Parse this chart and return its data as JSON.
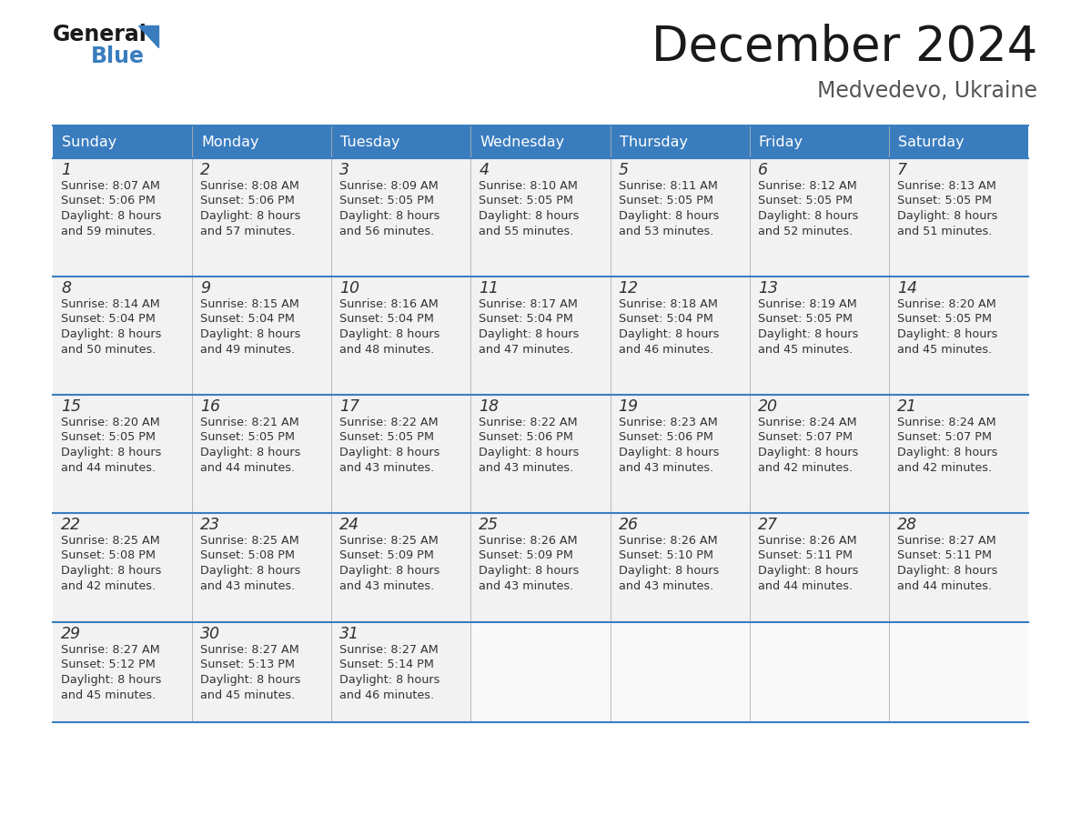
{
  "title": "December 2024",
  "subtitle": "Medvedevo, Ukraine",
  "header_color": "#3a7dbf",
  "header_text_color": "#ffffff",
  "cell_bg_color": "#f2f2f2",
  "border_color": "#3a7dbf",
  "separator_color": "#3a7dbf",
  "days_of_week": [
    "Sunday",
    "Monday",
    "Tuesday",
    "Wednesday",
    "Thursday",
    "Friday",
    "Saturday"
  ],
  "calendar_data": [
    [
      {
        "day": "1",
        "sunrise": "8:07 AM",
        "sunset": "5:06 PM",
        "daylight_line1": "Daylight: 8 hours",
        "daylight_line2": "and 59 minutes."
      },
      {
        "day": "2",
        "sunrise": "8:08 AM",
        "sunset": "5:06 PM",
        "daylight_line1": "Daylight: 8 hours",
        "daylight_line2": "and 57 minutes."
      },
      {
        "day": "3",
        "sunrise": "8:09 AM",
        "sunset": "5:05 PM",
        "daylight_line1": "Daylight: 8 hours",
        "daylight_line2": "and 56 minutes."
      },
      {
        "day": "4",
        "sunrise": "8:10 AM",
        "sunset": "5:05 PM",
        "daylight_line1": "Daylight: 8 hours",
        "daylight_line2": "and 55 minutes."
      },
      {
        "day": "5",
        "sunrise": "8:11 AM",
        "sunset": "5:05 PM",
        "daylight_line1": "Daylight: 8 hours",
        "daylight_line2": "and 53 minutes."
      },
      {
        "day": "6",
        "sunrise": "8:12 AM",
        "sunset": "5:05 PM",
        "daylight_line1": "Daylight: 8 hours",
        "daylight_line2": "and 52 minutes."
      },
      {
        "day": "7",
        "sunrise": "8:13 AM",
        "sunset": "5:05 PM",
        "daylight_line1": "Daylight: 8 hours",
        "daylight_line2": "and 51 minutes."
      }
    ],
    [
      {
        "day": "8",
        "sunrise": "8:14 AM",
        "sunset": "5:04 PM",
        "daylight_line1": "Daylight: 8 hours",
        "daylight_line2": "and 50 minutes."
      },
      {
        "day": "9",
        "sunrise": "8:15 AM",
        "sunset": "5:04 PM",
        "daylight_line1": "Daylight: 8 hours",
        "daylight_line2": "and 49 minutes."
      },
      {
        "day": "10",
        "sunrise": "8:16 AM",
        "sunset": "5:04 PM",
        "daylight_line1": "Daylight: 8 hours",
        "daylight_line2": "and 48 minutes."
      },
      {
        "day": "11",
        "sunrise": "8:17 AM",
        "sunset": "5:04 PM",
        "daylight_line1": "Daylight: 8 hours",
        "daylight_line2": "and 47 minutes."
      },
      {
        "day": "12",
        "sunrise": "8:18 AM",
        "sunset": "5:04 PM",
        "daylight_line1": "Daylight: 8 hours",
        "daylight_line2": "and 46 minutes."
      },
      {
        "day": "13",
        "sunrise": "8:19 AM",
        "sunset": "5:05 PM",
        "daylight_line1": "Daylight: 8 hours",
        "daylight_line2": "and 45 minutes."
      },
      {
        "day": "14",
        "sunrise": "8:20 AM",
        "sunset": "5:05 PM",
        "daylight_line1": "Daylight: 8 hours",
        "daylight_line2": "and 45 minutes."
      }
    ],
    [
      {
        "day": "15",
        "sunrise": "8:20 AM",
        "sunset": "5:05 PM",
        "daylight_line1": "Daylight: 8 hours",
        "daylight_line2": "and 44 minutes."
      },
      {
        "day": "16",
        "sunrise": "8:21 AM",
        "sunset": "5:05 PM",
        "daylight_line1": "Daylight: 8 hours",
        "daylight_line2": "and 44 minutes."
      },
      {
        "day": "17",
        "sunrise": "8:22 AM",
        "sunset": "5:05 PM",
        "daylight_line1": "Daylight: 8 hours",
        "daylight_line2": "and 43 minutes."
      },
      {
        "day": "18",
        "sunrise": "8:22 AM",
        "sunset": "5:06 PM",
        "daylight_line1": "Daylight: 8 hours",
        "daylight_line2": "and 43 minutes."
      },
      {
        "day": "19",
        "sunrise": "8:23 AM",
        "sunset": "5:06 PM",
        "daylight_line1": "Daylight: 8 hours",
        "daylight_line2": "and 43 minutes."
      },
      {
        "day": "20",
        "sunrise": "8:24 AM",
        "sunset": "5:07 PM",
        "daylight_line1": "Daylight: 8 hours",
        "daylight_line2": "and 42 minutes."
      },
      {
        "day": "21",
        "sunrise": "8:24 AM",
        "sunset": "5:07 PM",
        "daylight_line1": "Daylight: 8 hours",
        "daylight_line2": "and 42 minutes."
      }
    ],
    [
      {
        "day": "22",
        "sunrise": "8:25 AM",
        "sunset": "5:08 PM",
        "daylight_line1": "Daylight: 8 hours",
        "daylight_line2": "and 42 minutes."
      },
      {
        "day": "23",
        "sunrise": "8:25 AM",
        "sunset": "5:08 PM",
        "daylight_line1": "Daylight: 8 hours",
        "daylight_line2": "and 43 minutes."
      },
      {
        "day": "24",
        "sunrise": "8:25 AM",
        "sunset": "5:09 PM",
        "daylight_line1": "Daylight: 8 hours",
        "daylight_line2": "and 43 minutes."
      },
      {
        "day": "25",
        "sunrise": "8:26 AM",
        "sunset": "5:09 PM",
        "daylight_line1": "Daylight: 8 hours",
        "daylight_line2": "and 43 minutes."
      },
      {
        "day": "26",
        "sunrise": "8:26 AM",
        "sunset": "5:10 PM",
        "daylight_line1": "Daylight: 8 hours",
        "daylight_line2": "and 43 minutes."
      },
      {
        "day": "27",
        "sunrise": "8:26 AM",
        "sunset": "5:11 PM",
        "daylight_line1": "Daylight: 8 hours",
        "daylight_line2": "and 44 minutes."
      },
      {
        "day": "28",
        "sunrise": "8:27 AM",
        "sunset": "5:11 PM",
        "daylight_line1": "Daylight: 8 hours",
        "daylight_line2": "and 44 minutes."
      }
    ],
    [
      {
        "day": "29",
        "sunrise": "8:27 AM",
        "sunset": "5:12 PM",
        "daylight_line1": "Daylight: 8 hours",
        "daylight_line2": "and 45 minutes."
      },
      {
        "day": "30",
        "sunrise": "8:27 AM",
        "sunset": "5:13 PM",
        "daylight_line1": "Daylight: 8 hours",
        "daylight_line2": "and 45 minutes."
      },
      {
        "day": "31",
        "sunrise": "8:27 AM",
        "sunset": "5:14 PM",
        "daylight_line1": "Daylight: 8 hours",
        "daylight_line2": "and 46 minutes."
      },
      null,
      null,
      null,
      null
    ]
  ],
  "logo_general_color": "#1a1a1a",
  "logo_blue_color": "#3a7dbf",
  "logo_triangle_color": "#3a7dbf",
  "title_color": "#1a1a1a",
  "subtitle_color": "#555555",
  "day_number_color": "#333333",
  "cell_text_color": "#333333",
  "fig_width": 11.88,
  "fig_height": 9.18,
  "dpi": 100
}
